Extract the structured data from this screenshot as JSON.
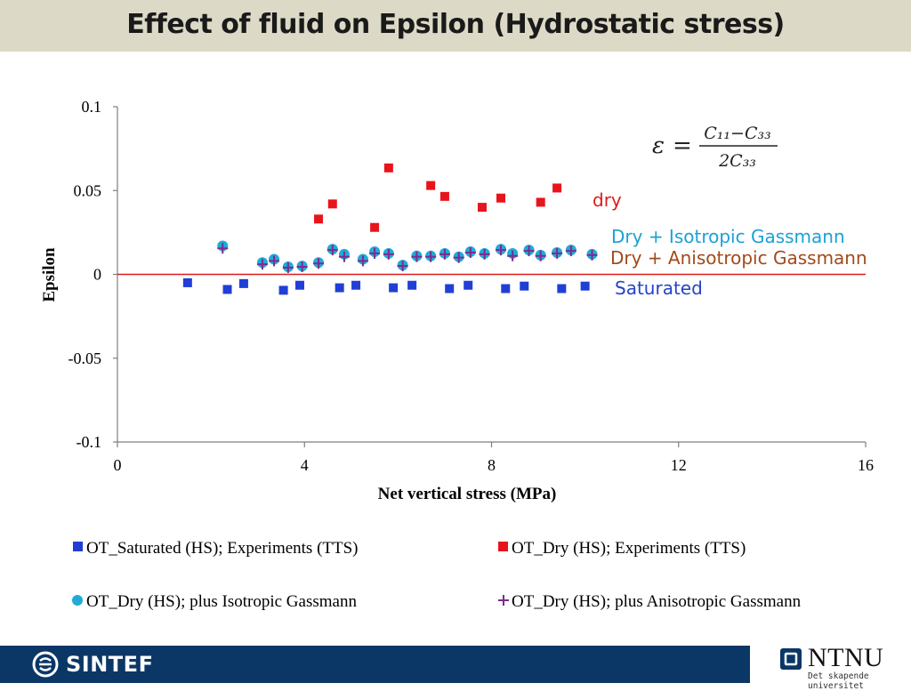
{
  "slide": {
    "title": "Effect of fluid on Epsilon (Hydrostatic stress)",
    "footer_left_logo": "SINTEF",
    "footer_right_logo": "NTNU",
    "footer_right_tagline": "Det skapende universitet"
  },
  "formula": {
    "lhs": "ε",
    "eq": "=",
    "numerator": "C₁₁−C₃₃",
    "denominator": "2C₃₃"
  },
  "annotations": {
    "dry": "dry",
    "dry_iso": "Dry + Isotropic Gassmann",
    "dry_aniso": "Dry + Anisotropic Gassmann",
    "saturated": "Saturated"
  },
  "colors": {
    "saturated": "#1f3fd6",
    "dry": "#e8141c",
    "iso": "#23a9d9",
    "aniso": "#7b2d8b",
    "zero_line": "#e01a1a",
    "dry_label": "#e01a1a",
    "iso_label": "#1ba1d6",
    "aniso_label": "#a14a1a",
    "sat_label": "#2443c8"
  },
  "chart_data": {
    "type": "scatter",
    "xlabel": "Net vertical stress (MPa)",
    "ylabel": "Epsilon",
    "xlim": [
      0,
      16
    ],
    "ylim": [
      -0.1,
      0.1
    ],
    "xticks": [
      0,
      4,
      8,
      12,
      16
    ],
    "yticks": [
      -0.1,
      -0.05,
      0,
      0.05,
      0.1
    ],
    "ytick_labels": [
      "-0.1",
      "-0.05",
      "0",
      "0.05",
      "0.1"
    ],
    "xtick_labels": [
      "0",
      "4",
      "8",
      "12",
      "16"
    ],
    "reference_line": {
      "y": 0,
      "x": [
        0,
        16
      ]
    },
    "legend_placement": "bottom",
    "series": [
      {
        "name": "OT_Saturated (HS); Experiments (TTS)",
        "marker": "square",
        "color_key": "saturated",
        "x": [
          1.5,
          2.35,
          2.7,
          3.55,
          3.9,
          4.75,
          5.1,
          5.9,
          6.3,
          7.1,
          7.5,
          8.3,
          8.7,
          9.5,
          10.0
        ],
        "y": [
          -0.005,
          -0.009,
          -0.0055,
          -0.0095,
          -0.0065,
          -0.008,
          -0.0065,
          -0.008,
          -0.0065,
          -0.0085,
          -0.0065,
          -0.0085,
          -0.007,
          -0.0085,
          -0.007
        ]
      },
      {
        "name": "OT_Dry (HS); Experiments (TTS)",
        "marker": "square",
        "color_key": "dry",
        "x": [
          4.3,
          4.6,
          5.5,
          5.8,
          6.7,
          7.0,
          7.8,
          8.2,
          9.05,
          9.4
        ],
        "y": [
          0.033,
          0.042,
          0.028,
          0.0635,
          0.053,
          0.0465,
          0.04,
          0.0455,
          0.043,
          0.0515
        ]
      },
      {
        "name": "OT_Dry (HS); plus Isotropic Gassmann",
        "marker": "circle",
        "color_key": "iso",
        "x": [
          2.25,
          3.1,
          3.35,
          3.65,
          3.95,
          4.3,
          4.6,
          4.85,
          5.25,
          5.5,
          5.8,
          6.1,
          6.4,
          6.7,
          7.0,
          7.3,
          7.55,
          7.85,
          8.2,
          8.45,
          8.8,
          9.05,
          9.4,
          9.7,
          10.15
        ],
        "y": [
          0.017,
          0.007,
          0.009,
          0.0045,
          0.005,
          0.007,
          0.015,
          0.012,
          0.009,
          0.0135,
          0.0125,
          0.0055,
          0.011,
          0.011,
          0.0125,
          0.0105,
          0.0135,
          0.0125,
          0.015,
          0.0125,
          0.0145,
          0.0115,
          0.013,
          0.0145,
          0.012
        ]
      },
      {
        "name": "OT_Dry (HS); plus Anisotropic Gassmann",
        "marker": "plus",
        "color_key": "aniso",
        "x": [
          2.25,
          3.1,
          3.35,
          3.65,
          3.95,
          4.3,
          4.6,
          4.85,
          5.25,
          5.5,
          5.8,
          6.1,
          6.4,
          6.7,
          7.0,
          7.3,
          7.55,
          7.85,
          8.2,
          8.45,
          8.8,
          9.05,
          9.4,
          9.7,
          10.15
        ],
        "y": [
          0.0155,
          0.006,
          0.008,
          0.004,
          0.0045,
          0.0065,
          0.0145,
          0.0105,
          0.008,
          0.0125,
          0.012,
          0.005,
          0.0105,
          0.0105,
          0.012,
          0.01,
          0.013,
          0.012,
          0.0145,
          0.011,
          0.014,
          0.011,
          0.0125,
          0.014,
          0.0115
        ]
      }
    ]
  }
}
